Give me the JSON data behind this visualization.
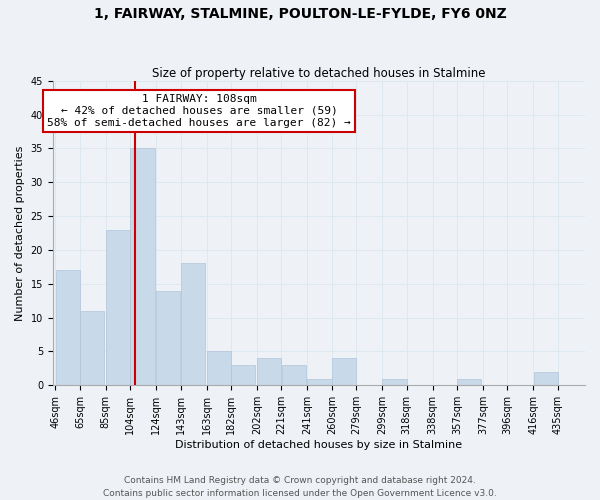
{
  "title": "1, FAIRWAY, STALMINE, POULTON-LE-FYLDE, FY6 0NZ",
  "subtitle": "Size of property relative to detached houses in Stalmine",
  "xlabel": "Distribution of detached houses by size in Stalmine",
  "ylabel": "Number of detached properties",
  "bar_color": "#c8d9ea",
  "bar_edgecolor": "#b0c4d8",
  "vline_x_index": 3,
  "vline_color": "#cc0000",
  "categories": [
    "46sqm",
    "65sqm",
    "85sqm",
    "104sqm",
    "124sqm",
    "143sqm",
    "163sqm",
    "182sqm",
    "202sqm",
    "221sqm",
    "241sqm",
    "260sqm",
    "279sqm",
    "299sqm",
    "318sqm",
    "338sqm",
    "357sqm",
    "377sqm",
    "396sqm",
    "416sqm",
    "435sqm"
  ],
  "bin_lefts": [
    46,
    65,
    85,
    104,
    124,
    143,
    163,
    182,
    202,
    221,
    241,
    260,
    279,
    299,
    318,
    338,
    357,
    377,
    396,
    416,
    435
  ],
  "bin_width": 19,
  "values": [
    17,
    11,
    23,
    35,
    14,
    18,
    5,
    3,
    4,
    3,
    1,
    4,
    0,
    1,
    0,
    0,
    1,
    0,
    0,
    2,
    0
  ],
  "ylim": [
    0,
    45
  ],
  "yticks": [
    0,
    5,
    10,
    15,
    20,
    25,
    30,
    35,
    40,
    45
  ],
  "annotation_title": "1 FAIRWAY: 108sqm",
  "annotation_line1": "← 42% of detached houses are smaller (59)",
  "annotation_line2": "58% of semi-detached houses are larger (82) →",
  "annotation_box_facecolor": "#ffffff",
  "annotation_box_edgecolor": "#cc0000",
  "footer1": "Contains HM Land Registry data © Crown copyright and database right 2024.",
  "footer2": "Contains public sector information licensed under the Open Government Licence v3.0.",
  "grid_color": "#dde8f0",
  "background_color": "#eef2f7",
  "title_fontsize": 10,
  "subtitle_fontsize": 8.5,
  "ylabel_fontsize": 8,
  "xlabel_fontsize": 8,
  "tick_fontsize": 7,
  "footer_fontsize": 6.5,
  "ann_fontsize": 8
}
